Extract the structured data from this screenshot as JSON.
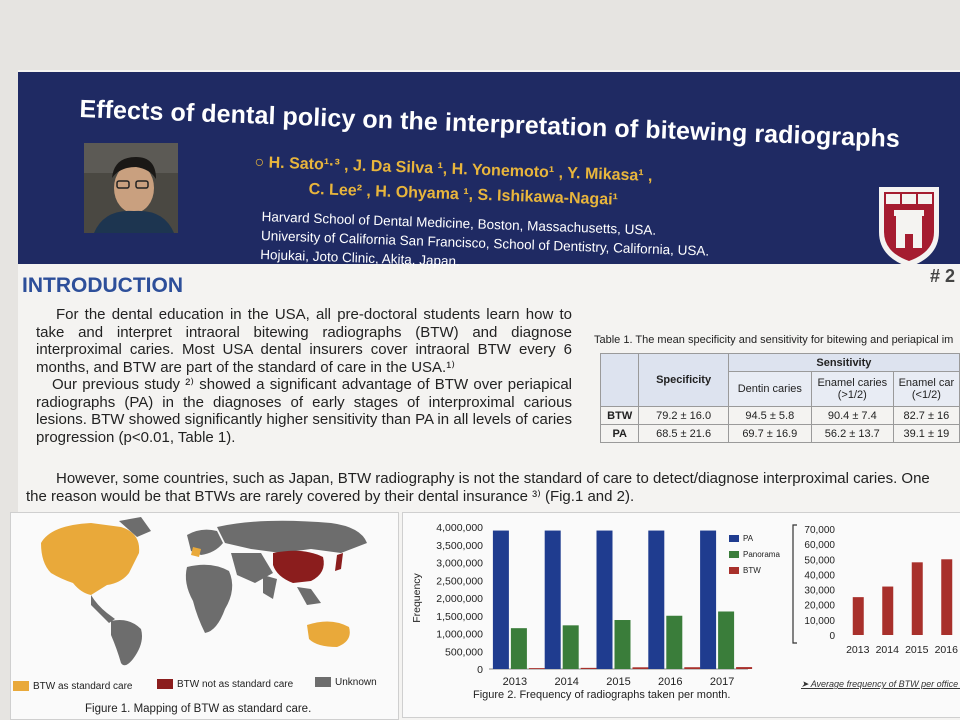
{
  "poster": {
    "title": "Effects of dental policy on the interpretation of bitewing radiographs",
    "authors_line1": "○ H. Sato¹·³ , J. Da Silva ¹, H. Yonemoto¹ , Y. Mikasa¹ ,",
    "authors_line2": "C. Lee² , H. Ohyama ¹, S. Ishikawa-Nagai¹",
    "affiliations": [
      "Harvard School of Dental Medicine, Boston, Massachusetts, USA.",
      "University of California San Francisco, School of Dentistry, California, USA.",
      "Hojukai, Joto Clinic, Akita, Japan."
    ],
    "poster_number": "# 2"
  },
  "intro": {
    "heading": "INTRODUCTION",
    "para1": "For the dental education in the USA, all pre-doctoral students learn how to take and interpret intraoral bitewing radiographs (BTW) and diagnose interproximal caries. Most USA dental insurers cover intraoral BTW every 6 months, and BTW are part of the standard of care in the USA.¹⁾",
    "para2": "Our previous study ²⁾ showed a significant advantage of BTW over periapical radiographs (PA) in the diagnoses of early stages of interproximal carious lesions. BTW showed significantly higher sensitivity than PA in all levels of caries progression (p<0.01, Table 1).",
    "para3_line1": "However, some countries, such as Japan, BTW radiography is not the standard of care to detect/diagnose interproximal caries. One",
    "para3_line2": "the reason would be that BTWs are rarely covered by their dental insurance ³⁾ (Fig.1 and 2)."
  },
  "table1": {
    "caption": "Table 1. The mean specificity and sensitivity for bitewing and periapical im",
    "header_specificity": "Specificity",
    "header_sensitivity": "Sensitivity",
    "sub_headers": [
      "Dentin caries",
      "Enamel caries (>1/2)",
      "Enamel car (<1/2)"
    ],
    "rows": [
      {
        "label": "BTW",
        "specificity": "79.2 ± 16.0",
        "dentin": "94.5 ± 5.8",
        "enamel_gt": "90.4 ± 7.4",
        "enamel_lt": "82.7 ± 16"
      },
      {
        "label": "PA",
        "specificity": "68.5 ± 21.6",
        "dentin": "69.7 ± 16.9",
        "enamel_gt": "56.2 ± 13.7",
        "enamel_lt": "39.1 ± 19"
      }
    ]
  },
  "figure1": {
    "caption": "Figure 1. Mapping of BTW as standard care.",
    "legend": [
      {
        "label": "BTW as standard care",
        "color": "#e9a93a"
      },
      {
        "label": "BTW not as standard care",
        "color": "#8b1d1d"
      },
      {
        "label": "Unknown",
        "color": "#6d6d6d"
      }
    ]
  },
  "figure2": {
    "caption": "Figure 2. Frequency of radiographs taken per month.",
    "ylabel": "Frequency",
    "legend": [
      {
        "label": "PA",
        "color": "#1f3c8f"
      },
      {
        "label": "Panorama",
        "color": "#3a7d3a"
      },
      {
        "label": "BTW",
        "color": "#a8302b"
      }
    ],
    "note": "➤ Average frequency of BTW per office : C"
  },
  "chart_data": [
    {
      "type": "bar",
      "title": "",
      "ylabel": "Frequency",
      "categories": [
        "2013",
        "2014",
        "2015",
        "2016",
        "2017"
      ],
      "ylim": [
        0,
        4000000
      ],
      "yticks": [
        "0",
        "500,000",
        "1,000,000",
        "1,500,000",
        "2,000,000",
        "2,500,000",
        "3,000,000",
        "3,500,000",
        "4,000,000"
      ],
      "series": [
        {
          "name": "PA",
          "values": [
            3900000,
            3900000,
            3900000,
            3900000,
            3900000
          ]
        },
        {
          "name": "Panorama",
          "values": [
            1150000,
            1230000,
            1380000,
            1500000,
            1620000
          ]
        },
        {
          "name": "BTW",
          "values": [
            25000,
            32000,
            48000,
            50000,
            54000
          ]
        }
      ]
    },
    {
      "type": "bar",
      "title": "",
      "categories": [
        "2013",
        "2014",
        "2015",
        "2016"
      ],
      "ylim": [
        0,
        70000
      ],
      "yticks": [
        "0",
        "10,000",
        "20,000",
        "30,000",
        "40,000",
        "50,000",
        "60,000",
        "70,000"
      ],
      "series": [
        {
          "name": "BTW",
          "values": [
            25000,
            32000,
            48000,
            50000
          ]
        }
      ]
    }
  ]
}
